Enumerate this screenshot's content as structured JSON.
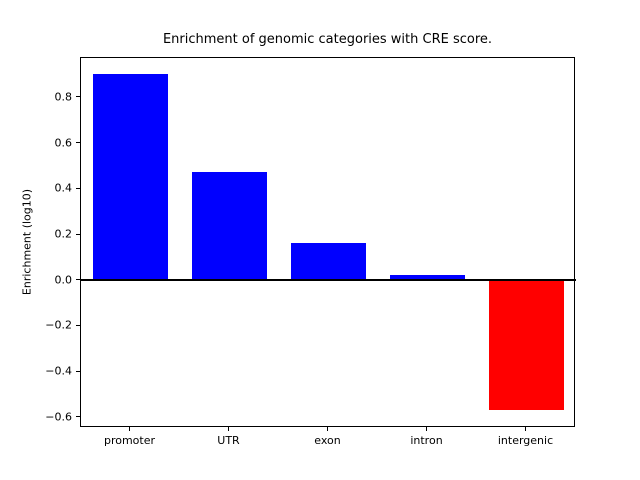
{
  "chart_data": {
    "type": "bar",
    "title": "Enrichment of genomic categories with CRE score.",
    "xlabel": "",
    "ylabel": "Enrichment (log10)",
    "categories": [
      "promoter",
      "UTR",
      "exon",
      "intron",
      "intergenic"
    ],
    "values": [
      0.9,
      0.47,
      0.16,
      0.02,
      -0.57
    ],
    "ylim": [
      -0.645,
      0.975
    ],
    "yticks": [
      {
        "value": 0.8,
        "label": "0.8"
      },
      {
        "value": 0.6,
        "label": "0.6"
      },
      {
        "value": 0.4,
        "label": "0.4"
      },
      {
        "value": 0.2,
        "label": "0.2"
      },
      {
        "value": 0.0,
        "label": "0.0"
      },
      {
        "value": -0.2,
        "label": "−0.2"
      },
      {
        "value": -0.4,
        "label": "−0.4"
      },
      {
        "value": -0.6,
        "label": "−0.6"
      }
    ],
    "grid": false,
    "legend": null,
    "zero_line": true,
    "colors": {
      "positive": "#0000ff",
      "negative": "#ff0000",
      "axis": "#000000",
      "background": "#ffffff"
    }
  }
}
